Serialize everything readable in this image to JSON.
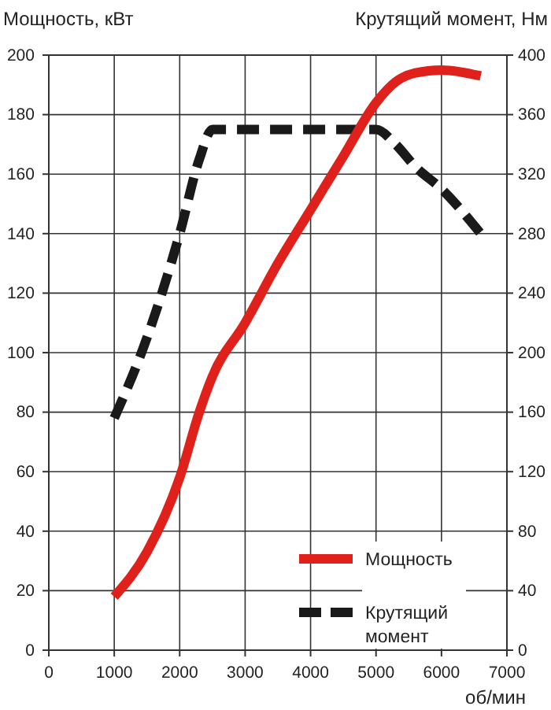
{
  "chart_data": {
    "type": "line",
    "ylabel": "Мощность, кВт",
    "y2label": "Крутящий момент, Нм",
    "xlabel": "об/мин",
    "xlim": [
      0,
      7000
    ],
    "xticks": [
      0,
      1000,
      2000,
      3000,
      4000,
      5000,
      6000,
      7000
    ],
    "ylim": [
      0,
      200
    ],
    "yticks": [
      0,
      20,
      40,
      60,
      80,
      100,
      120,
      140,
      160,
      180,
      200
    ],
    "y2lim": [
      0,
      400
    ],
    "y2ticks": [
      0,
      40,
      80,
      120,
      160,
      200,
      240,
      280,
      320,
      360,
      400
    ],
    "grid": true,
    "legend": "bottom right",
    "series": [
      {
        "name": "Мощность",
        "color": "#e0201b",
        "line_style": "solid",
        "x": [
          1000,
          1500,
          2000,
          2300,
          2500,
          3000,
          3500,
          4000,
          4500,
          5000,
          5300,
          5600,
          6000,
          6600
        ],
        "values": [
          18,
          33,
          58,
          80,
          92,
          110,
          130,
          148,
          166,
          184,
          191,
          194,
          195,
          193
        ]
      },
      {
        "name": "Крутящий момент",
        "color": "#1a1a1a",
        "line_style": "dashed",
        "axis": "y2",
        "x": [
          1000,
          1500,
          2000,
          2300,
          2500,
          3000,
          4000,
          5000,
          5300,
          5600,
          6000,
          6600
        ],
        "values": [
          156,
          210,
          280,
          330,
          350,
          350,
          350,
          350,
          340,
          325,
          310,
          280
        ]
      }
    ]
  }
}
